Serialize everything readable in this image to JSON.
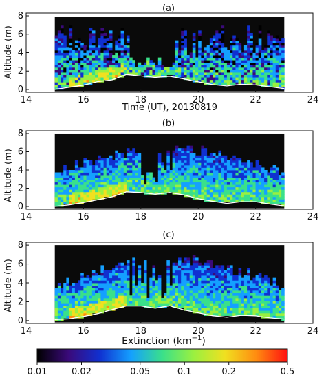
{
  "chart_data": [
    {
      "type": "heatmap",
      "panel_label": "(a)",
      "xlabel": "Time (UT), 20130819",
      "ylabel": "Altitude (m)",
      "xlim": [
        14,
        24
      ],
      "ylim": [
        -0.3,
        8.3
      ],
      "xticks": [
        "14",
        "16",
        "18",
        "20",
        "22",
        "24"
      ],
      "yticks": [
        "0",
        "2",
        "4",
        "6",
        "8"
      ],
      "data_window": [
        15,
        23
      ],
      "colormap": [
        "#000000",
        "#3a0a7a",
        "#1030d0",
        "#14a0ff",
        "#3ae08a",
        "#9af040",
        "#f0e020",
        "#ff8c10",
        "#ff1010"
      ],
      "surface_line": {
        "color": "#ffffff",
        "x": [
          15.0,
          15.5,
          16.0,
          16.5,
          17.0,
          17.5,
          18.0,
          18.5,
          19.0,
          19.5,
          20.0,
          20.5,
          21.0,
          21.5,
          22.0,
          22.5,
          23.0
        ],
        "y": [
          0.05,
          0.2,
          0.4,
          0.8,
          1.1,
          1.6,
          1.5,
          1.3,
          1.5,
          1.2,
          0.8,
          0.5,
          0.4,
          0.6,
          0.5,
          0.3,
          0.1
        ]
      }
    },
    {
      "type": "heatmap",
      "panel_label": "(b)",
      "xlabel": "",
      "ylabel": "Altitude (m)",
      "xlim": [
        14,
        24
      ],
      "ylim": [
        -0.3,
        8.3
      ],
      "xticks": [
        "14",
        "16",
        "18",
        "20",
        "22",
        "24"
      ],
      "yticks": [
        "0",
        "2",
        "4",
        "6",
        "8"
      ],
      "data_window": [
        15,
        23
      ],
      "colormap": [
        "#000000",
        "#3a0a7a",
        "#1030d0",
        "#14a0ff",
        "#3ae08a",
        "#9af040",
        "#f0e020",
        "#ff8c10",
        "#ff1010"
      ],
      "surface_line": {
        "color": "#ffffff",
        "x": [
          15.0,
          15.5,
          16.0,
          16.5,
          17.0,
          17.5,
          18.0,
          18.5,
          19.0,
          19.5,
          20.0,
          20.5,
          21.0,
          21.5,
          22.0,
          22.5,
          23.0
        ],
        "y": [
          0.05,
          0.2,
          0.4,
          0.8,
          1.1,
          1.6,
          1.5,
          1.3,
          1.5,
          1.2,
          0.8,
          0.5,
          0.4,
          0.6,
          0.5,
          0.3,
          0.1
        ]
      }
    },
    {
      "type": "heatmap",
      "panel_label": "(c)",
      "xlabel": "",
      "ylabel": "Altitude (m)",
      "xlim": [
        14,
        24
      ],
      "ylim": [
        -0.3,
        8.3
      ],
      "xticks": [
        "14",
        "16",
        "18",
        "20",
        "22",
        "24"
      ],
      "yticks": [
        "0",
        "2",
        "4",
        "6",
        "8"
      ],
      "data_window": [
        15,
        23
      ],
      "colormap": [
        "#000000",
        "#3a0a7a",
        "#1030d0",
        "#14a0ff",
        "#3ae08a",
        "#9af040",
        "#f0e020",
        "#ff8c10",
        "#ff1010"
      ],
      "surface_line": {
        "color": "#ffffff",
        "x": [
          15.0,
          15.5,
          16.0,
          16.5,
          17.0,
          17.5,
          18.0,
          18.5,
          19.0,
          19.5,
          20.0,
          20.5,
          21.0,
          21.5,
          22.0,
          22.5,
          23.0
        ],
        "y": [
          0.05,
          0.2,
          0.4,
          0.8,
          1.1,
          1.6,
          1.5,
          1.3,
          1.5,
          1.2,
          0.8,
          0.5,
          0.4,
          0.6,
          0.5,
          0.3,
          0.1
        ]
      }
    }
  ],
  "colorbar": {
    "title_main": "Extinction (km",
    "title_sup": "−1",
    "title_close": ")",
    "scale": "log",
    "range": [
      0.01,
      0.5
    ],
    "ticks": [
      "0.01",
      "0.02",
      "0.05",
      "0.1",
      "0.2",
      "0.5"
    ],
    "colors": [
      "#000000",
      "#3a0a7a",
      "#1030d0",
      "#14a0ff",
      "#3ae08a",
      "#9af040",
      "#f0e020",
      "#ff8c10",
      "#ff1010"
    ]
  }
}
